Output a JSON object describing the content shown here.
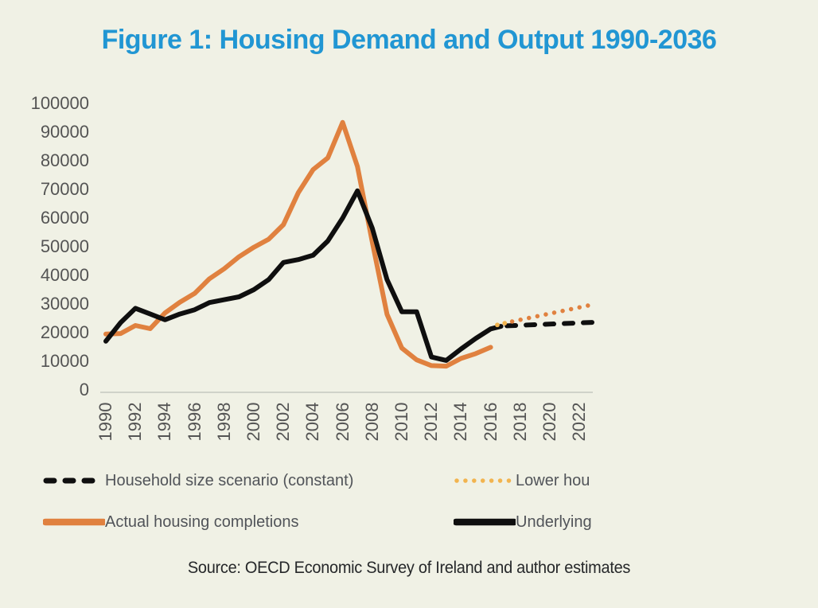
{
  "page": {
    "background": "#f0f1e5"
  },
  "title": {
    "text": "Figure 1: Housing Demand and Output 1990-2036"
  },
  "source": {
    "text": "Source: OECD Economic Survey of Ireland and author estimates"
  },
  "colors": {
    "orange": "#e0813f",
    "amber": "#f2b44f",
    "black": "#0f0f0f",
    "axis_line": "#c6c8c0",
    "axis_text": "#545454",
    "legend_text": "#515459",
    "source_text": "#26282a",
    "title_blue": "#2196d3",
    "background": "#f0f1e5"
  },
  "legend": {
    "items": [
      {
        "id": "household-size-scenario-constant",
        "label": "Household size scenario (constant)",
        "style": "dashed",
        "color_key": "black"
      },
      {
        "id": "lower-household",
        "label": "Lower hou",
        "style": "dotted",
        "color_key": "amber"
      },
      {
        "id": "actual-housing-completions",
        "label": "Actual housing completions",
        "style": "solid",
        "color_key": "orange"
      },
      {
        "id": "underlying",
        "label": "Underlying",
        "style": "solid",
        "color_key": "black"
      }
    ]
  },
  "chart_data": {
    "type": "line",
    "title": "Figure 1: Housing Demand and Output 1990-2036",
    "xlabel": "",
    "ylabel": "",
    "ylim": [
      0,
      100000
    ],
    "yticks": [
      100000,
      90000,
      80000,
      70000,
      60000,
      50000,
      40000,
      30000,
      20000,
      10000,
      0
    ],
    "xticks": [
      1990,
      1992,
      1994,
      1996,
      1998,
      2000,
      2002,
      2004,
      2006,
      2008,
      2010,
      2012,
      2014,
      2016,
      2018,
      2020,
      2022
    ],
    "x_visible_range": [
      1990,
      2023
    ],
    "grid": false,
    "legend_position": "bottom",
    "series": [
      {
        "id": "actual-housing-completions",
        "name": "Actual housing completions",
        "style": "solid",
        "color_key": "orange",
        "points": [
          [
            1990,
            19500
          ],
          [
            1991,
            19700
          ],
          [
            1992,
            22500
          ],
          [
            1993,
            21400
          ],
          [
            1994,
            26900
          ],
          [
            1995,
            30600
          ],
          [
            1996,
            33700
          ],
          [
            1997,
            38800
          ],
          [
            1998,
            42300
          ],
          [
            1999,
            46500
          ],
          [
            2000,
            49800
          ],
          [
            2001,
            52600
          ],
          [
            2002,
            57700
          ],
          [
            2003,
            68800
          ],
          [
            2004,
            76900
          ],
          [
            2005,
            81000
          ],
          [
            2006,
            93400
          ],
          [
            2007,
            78000
          ],
          [
            2008,
            51700
          ],
          [
            2009,
            26400
          ],
          [
            2010,
            14600
          ],
          [
            2011,
            10500
          ],
          [
            2012,
            8500
          ],
          [
            2013,
            8300
          ],
          [
            2014,
            11000
          ],
          [
            2015,
            12700
          ],
          [
            2016,
            14900
          ]
        ]
      },
      {
        "id": "underlying-demand",
        "name": "Underlying",
        "style": "solid",
        "color_key": "black",
        "points": [
          [
            1990,
            17000
          ],
          [
            1991,
            23500
          ],
          [
            1992,
            28500
          ],
          [
            1993,
            26500
          ],
          [
            1994,
            24500
          ],
          [
            1995,
            26500
          ],
          [
            1996,
            28000
          ],
          [
            1997,
            30500
          ],
          [
            1998,
            31500
          ],
          [
            1999,
            32500
          ],
          [
            2000,
            35000
          ],
          [
            2001,
            38500
          ],
          [
            2002,
            44500
          ],
          [
            2003,
            45500
          ],
          [
            2004,
            47000
          ],
          [
            2005,
            52000
          ],
          [
            2006,
            60000
          ],
          [
            2007,
            69500
          ],
          [
            2008,
            56500
          ],
          [
            2009,
            38500
          ],
          [
            2010,
            27300
          ],
          [
            2011,
            27300
          ],
          [
            2012,
            11500
          ],
          [
            2013,
            10300
          ],
          [
            2014,
            14300
          ],
          [
            2015,
            18000
          ],
          [
            2016,
            21300
          ],
          [
            2016.7,
            22200
          ]
        ]
      },
      {
        "id": "household-size-scenario-constant",
        "name": "Household size scenario (constant)",
        "style": "dashed",
        "color_key": "black",
        "points": [
          [
            2017.1,
            22400
          ],
          [
            2023,
            23600
          ]
        ]
      },
      {
        "id": "projection-dots-amber",
        "name": "Lower hou",
        "style": "dots",
        "color_key": "amber",
        "points": [
          [
            2016.45,
            22700
          ],
          [
            2016.95,
            23300
          ]
        ]
      },
      {
        "id": "projection-dots-orange",
        "name": "Lower hou",
        "style": "dotted",
        "color_key": "orange",
        "points": [
          [
            2017.45,
            23900
          ],
          [
            2022.8,
            29700
          ]
        ]
      }
    ]
  }
}
